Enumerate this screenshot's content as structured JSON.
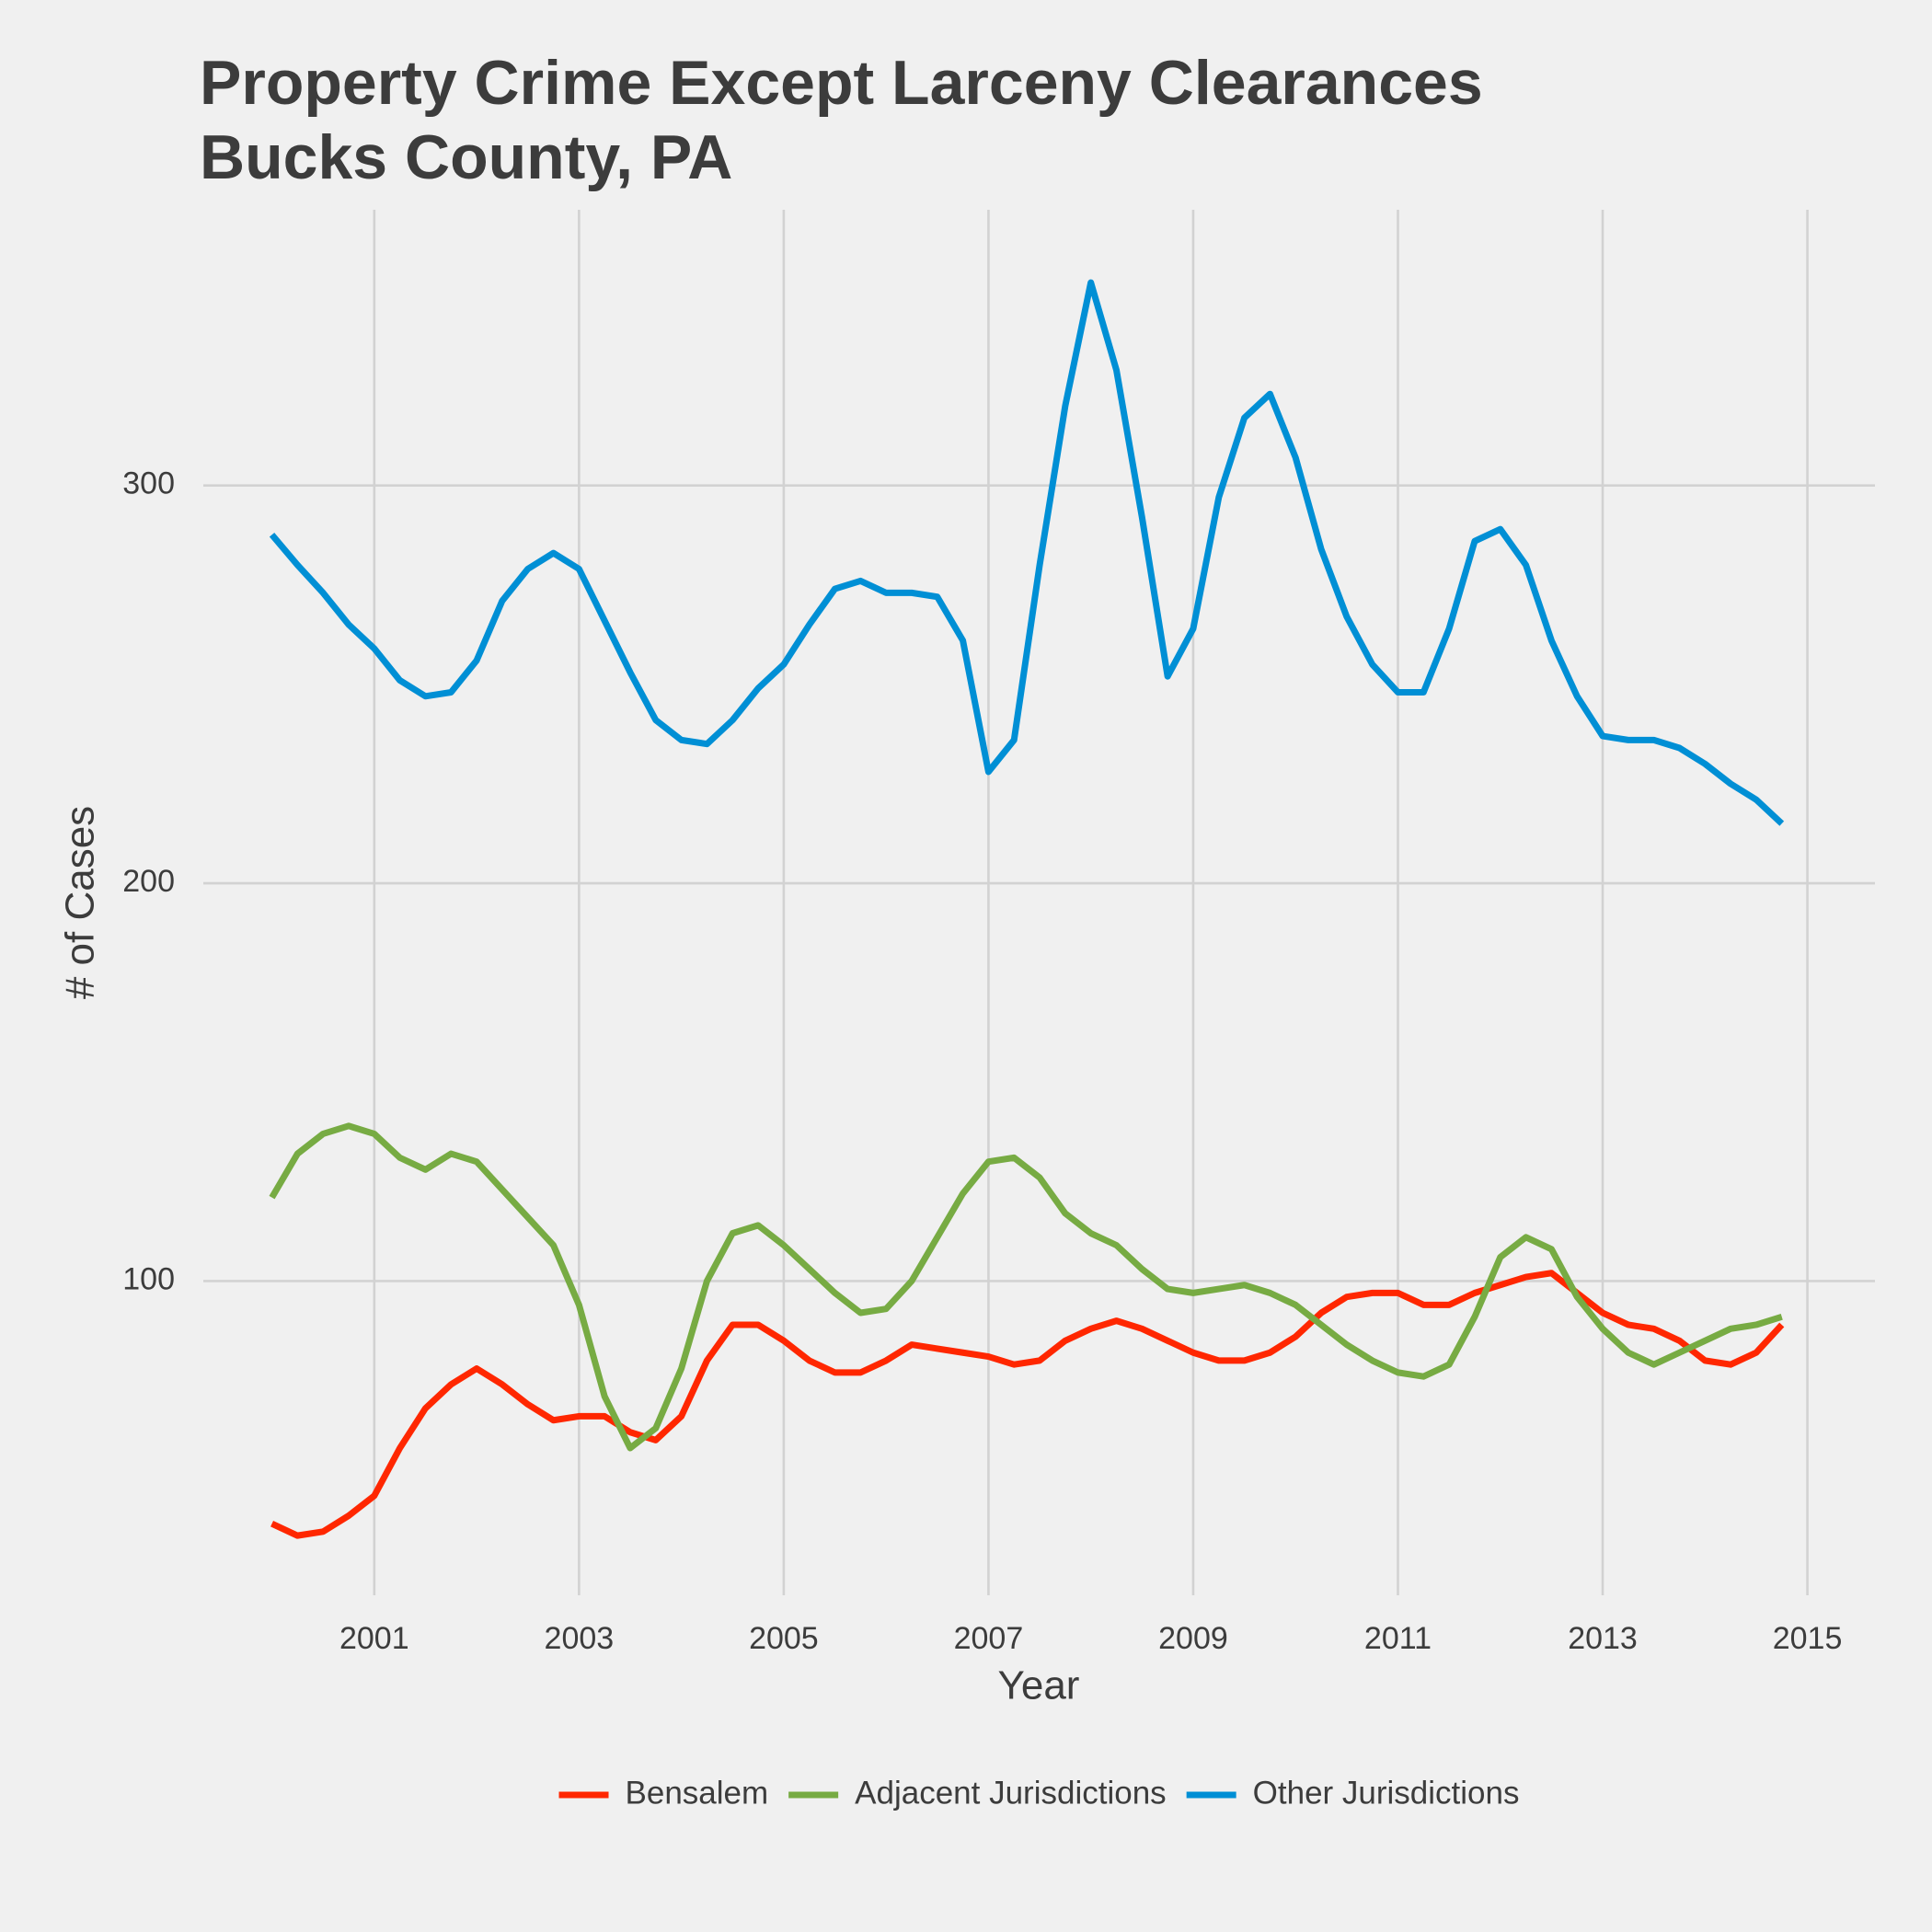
{
  "chart_data": {
    "type": "line",
    "title": [
      "Property Crime Except Larceny Clearances",
      "Bucks County, PA"
    ],
    "x_label": "Year",
    "y_label": "# of Cases",
    "x": [
      2000,
      2000.25,
      2000.5,
      2000.75,
      2001,
      2001.25,
      2001.5,
      2001.75,
      2002,
      2002.25,
      2002.5,
      2002.75,
      2003,
      2003.25,
      2003.5,
      2003.75,
      2004,
      2004.25,
      2004.5,
      2004.75,
      2005,
      2005.25,
      2005.5,
      2005.75,
      2006,
      2006.25,
      2006.5,
      2006.75,
      2007,
      2007.25,
      2007.5,
      2007.75,
      2008,
      2008.25,
      2008.5,
      2008.75,
      2009,
      2009.25,
      2009.5,
      2009.75,
      2010,
      2010.25,
      2010.5,
      2010.75,
      2011,
      2011.25,
      2011.5,
      2011.75,
      2012,
      2012.25,
      2012.5,
      2012.75,
      2013,
      2013.25,
      2013.5,
      2013.75,
      2014,
      2014.25,
      2014.5,
      2014.75
    ],
    "series": [
      {
        "name": "Bensalem",
        "color": "#ff2700",
        "values": [
          39,
          36,
          37,
          41,
          46,
          58,
          68,
          74,
          78,
          74,
          69,
          65,
          66,
          66,
          62,
          60,
          66,
          80,
          89,
          89,
          85,
          80,
          77,
          77,
          80,
          84,
          83,
          82,
          81,
          79,
          80,
          85,
          88,
          90,
          88,
          85,
          82,
          80,
          80,
          82,
          86,
          92,
          96,
          97,
          97,
          94,
          94,
          97,
          99,
          101,
          102,
          97,
          92,
          89,
          88,
          85,
          80,
          79,
          82,
          89
        ]
      },
      {
        "name": "Adjacent Jurisdictions",
        "color": "#77ab43",
        "values": [
          121,
          132,
          137,
          139,
          137,
          131,
          128,
          132,
          130,
          123,
          116,
          109,
          94,
          71,
          58,
          63,
          78,
          100,
          112,
          114,
          109,
          103,
          97,
          92,
          93,
          100,
          111,
          122,
          130,
          131,
          126,
          117,
          112,
          109,
          103,
          98,
          97,
          98,
          99,
          97,
          94,
          89,
          84,
          80,
          77,
          76,
          79,
          91,
          106,
          111,
          108,
          96,
          88,
          82,
          79,
          82,
          85,
          88,
          89,
          91
        ]
      },
      {
        "name": "Other Jurisdictions",
        "color": "#008fd5",
        "values": [
          287.6,
          280,
          273,
          265,
          259,
          251,
          247,
          248,
          256,
          271,
          279,
          283,
          279,
          266,
          253,
          241,
          236,
          235,
          241,
          249,
          255,
          265,
          274,
          276,
          273,
          273,
          272,
          261,
          228,
          236,
          280,
          320,
          351,
          329,
          292,
          252,
          264,
          297,
          317,
          323,
          307,
          284,
          267,
          255,
          248,
          248,
          264,
          286,
          289,
          280,
          261,
          247,
          237,
          236,
          236,
          234,
          230,
          225,
          221,
          215
        ]
      }
    ],
    "xlim": [
      1999.33,
      2015.66
    ],
    "ylim": [
      21,
      369.3
    ],
    "xticks": [
      2001,
      2003,
      2005,
      2007,
      2009,
      2011,
      2013,
      2015
    ],
    "yticks": [
      100,
      200,
      300
    ],
    "grid": true,
    "legend": "bottom"
  }
}
